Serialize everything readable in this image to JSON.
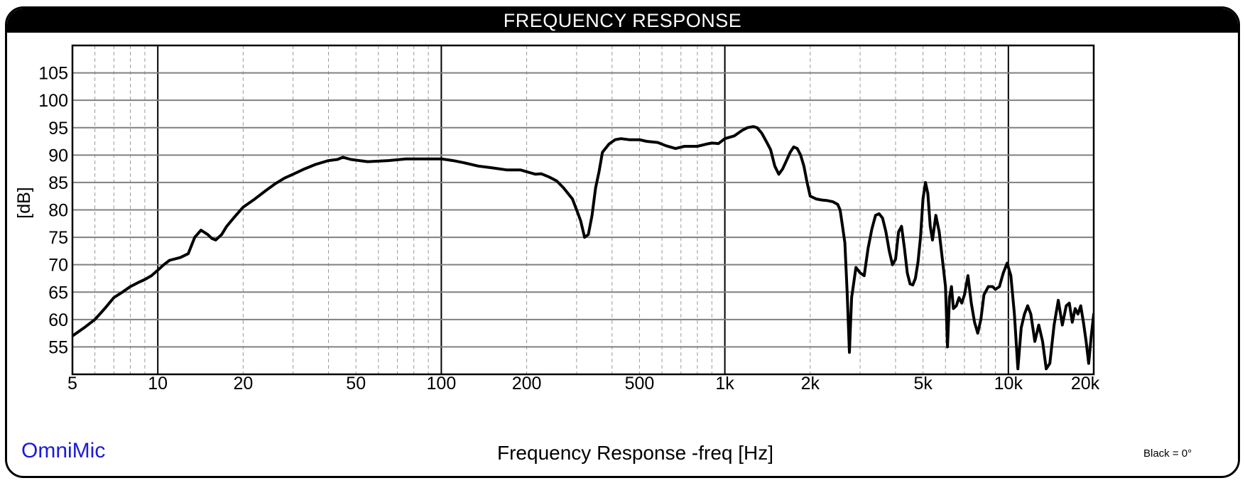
{
  "chart_data": {
    "type": "line",
    "title": "FREQUENCY RESPONSE",
    "xlabel": "Frequency Response -freq [Hz]",
    "ylabel": "[dB]",
    "xscale": "log",
    "xlim": [
      5,
      20000
    ],
    "ylim": [
      50,
      110
    ],
    "grid": true,
    "x_ticks": [
      {
        "value": 5,
        "label": "5"
      },
      {
        "value": 10,
        "label": "10"
      },
      {
        "value": 20,
        "label": "20"
      },
      {
        "value": 50,
        "label": "50"
      },
      {
        "value": 100,
        "label": "100"
      },
      {
        "value": 200,
        "label": "200"
      },
      {
        "value": 500,
        "label": "500"
      },
      {
        "value": 1000,
        "label": "1k"
      },
      {
        "value": 2000,
        "label": "2k"
      },
      {
        "value": 5000,
        "label": "5k"
      },
      {
        "value": 10000,
        "label": "10k"
      },
      {
        "value": 20000,
        "label": "20k"
      }
    ],
    "y_ticks": [
      55,
      60,
      65,
      70,
      75,
      80,
      85,
      90,
      95,
      100,
      105
    ],
    "series": [
      {
        "name": "",
        "color": "#000000",
        "points": [
          [
            5,
            57
          ],
          [
            5.5,
            58.5
          ],
          [
            6,
            60
          ],
          [
            6.5,
            62
          ],
          [
            7,
            64
          ],
          [
            7.5,
            65
          ],
          [
            8,
            66
          ],
          [
            8.5,
            66.7
          ],
          [
            9,
            67.3
          ],
          [
            9.5,
            68
          ],
          [
            10,
            69
          ],
          [
            10.5,
            70
          ],
          [
            11,
            70.8
          ],
          [
            12,
            71.3
          ],
          [
            12.8,
            72
          ],
          [
            13.5,
            75
          ],
          [
            14.2,
            76.3
          ],
          [
            15,
            75.5
          ],
          [
            15.5,
            74.8
          ],
          [
            16,
            74.5
          ],
          [
            16.8,
            75.5
          ],
          [
            17.5,
            77
          ],
          [
            18.5,
            78.5
          ],
          [
            20,
            80.5
          ],
          [
            22,
            82
          ],
          [
            24,
            83.5
          ],
          [
            26,
            84.8
          ],
          [
            28,
            85.8
          ],
          [
            30,
            86.5
          ],
          [
            33,
            87.5
          ],
          [
            36,
            88.3
          ],
          [
            40,
            89
          ],
          [
            43,
            89.2
          ],
          [
            45,
            89.6
          ],
          [
            48,
            89.2
          ],
          [
            55,
            88.8
          ],
          [
            65,
            89
          ],
          [
            75,
            89.3
          ],
          [
            85,
            89.3
          ],
          [
            95,
            89.3
          ],
          [
            100,
            89.3
          ],
          [
            110,
            89
          ],
          [
            120,
            88.6
          ],
          [
            135,
            88
          ],
          [
            150,
            87.7
          ],
          [
            170,
            87.3
          ],
          [
            190,
            87.3
          ],
          [
            205,
            86.8
          ],
          [
            215,
            86.5
          ],
          [
            225,
            86.6
          ],
          [
            240,
            86
          ],
          [
            255,
            85.3
          ],
          [
            270,
            84
          ],
          [
            290,
            82
          ],
          [
            300,
            80
          ],
          [
            310,
            78
          ],
          [
            320,
            75
          ],
          [
            330,
            75.5
          ],
          [
            340,
            79
          ],
          [
            350,
            84
          ],
          [
            360,
            87
          ],
          [
            370,
            90.5
          ],
          [
            390,
            92
          ],
          [
            410,
            92.8
          ],
          [
            430,
            93
          ],
          [
            460,
            92.8
          ],
          [
            500,
            92.8
          ],
          [
            530,
            92.5
          ],
          [
            580,
            92.3
          ],
          [
            620,
            91.7
          ],
          [
            670,
            91.2
          ],
          [
            720,
            91.6
          ],
          [
            800,
            91.6
          ],
          [
            860,
            92
          ],
          [
            900,
            92.2
          ],
          [
            950,
            92.1
          ],
          [
            1000,
            93
          ],
          [
            1080,
            93.5
          ],
          [
            1150,
            94.5
          ],
          [
            1200,
            95
          ],
          [
            1260,
            95.2
          ],
          [
            1300,
            95
          ],
          [
            1350,
            94
          ],
          [
            1400,
            92.5
          ],
          [
            1450,
            91
          ],
          [
            1500,
            88
          ],
          [
            1550,
            86.5
          ],
          [
            1600,
            87.5
          ],
          [
            1650,
            89
          ],
          [
            1700,
            90.5
          ],
          [
            1750,
            91.5
          ],
          [
            1800,
            91.2
          ],
          [
            1850,
            90
          ],
          [
            1900,
            88
          ],
          [
            1950,
            85
          ],
          [
            2000,
            82.5
          ],
          [
            2100,
            82
          ],
          [
            2200,
            81.8
          ],
          [
            2300,
            81.7
          ],
          [
            2400,
            81.5
          ],
          [
            2500,
            81
          ],
          [
            2550,
            80
          ],
          [
            2600,
            77
          ],
          [
            2650,
            74
          ],
          [
            2700,
            65
          ],
          [
            2750,
            54
          ],
          [
            2800,
            64
          ],
          [
            2900,
            69.5
          ],
          [
            3000,
            68.5
          ],
          [
            3100,
            68
          ],
          [
            3200,
            73
          ],
          [
            3300,
            76.5
          ],
          [
            3400,
            79
          ],
          [
            3500,
            79.3
          ],
          [
            3600,
            78.5
          ],
          [
            3700,
            76
          ],
          [
            3800,
            72.5
          ],
          [
            3900,
            70
          ],
          [
            4000,
            71
          ],
          [
            4100,
            76
          ],
          [
            4200,
            77
          ],
          [
            4300,
            73
          ],
          [
            4400,
            68.5
          ],
          [
            4500,
            66.5
          ],
          [
            4600,
            66.3
          ],
          [
            4700,
            67.5
          ],
          [
            4800,
            70.5
          ],
          [
            4900,
            75
          ],
          [
            5000,
            82
          ],
          [
            5100,
            85
          ],
          [
            5200,
            83
          ],
          [
            5300,
            77
          ],
          [
            5400,
            74.5
          ],
          [
            5550,
            79
          ],
          [
            5700,
            76
          ],
          [
            5850,
            71
          ],
          [
            6000,
            66
          ],
          [
            6100,
            55
          ],
          [
            6200,
            64
          ],
          [
            6300,
            66
          ],
          [
            6400,
            62
          ],
          [
            6550,
            62.5
          ],
          [
            6700,
            64
          ],
          [
            6850,
            63
          ],
          [
            7000,
            64.5
          ],
          [
            7200,
            68
          ],
          [
            7400,
            63
          ],
          [
            7600,
            59.5
          ],
          [
            7800,
            57.5
          ],
          [
            8000,
            60
          ],
          [
            8200,
            64.5
          ],
          [
            8500,
            66
          ],
          [
            8800,
            66
          ],
          [
            9000,
            65.5
          ],
          [
            9300,
            66
          ],
          [
            9600,
            68.5
          ],
          [
            9900,
            70.3
          ],
          [
            10200,
            68
          ],
          [
            10500,
            61
          ],
          [
            10800,
            51
          ],
          [
            11100,
            58.5
          ],
          [
            11400,
            61
          ],
          [
            11700,
            62.5
          ],
          [
            12000,
            61
          ],
          [
            12400,
            56
          ],
          [
            12800,
            59
          ],
          [
            13200,
            56
          ],
          [
            13600,
            51
          ],
          [
            14000,
            52
          ],
          [
            14500,
            59
          ],
          [
            15000,
            63.5
          ],
          [
            15500,
            59
          ],
          [
            16000,
            62.5
          ],
          [
            16400,
            63
          ],
          [
            16800,
            59.5
          ],
          [
            17200,
            62
          ],
          [
            17600,
            61
          ],
          [
            18000,
            62.5
          ],
          [
            18400,
            59.5
          ],
          [
            18800,
            56
          ],
          [
            19200,
            52
          ],
          [
            19600,
            57
          ],
          [
            20000,
            61
          ]
        ]
      }
    ]
  },
  "brand": "OmniMic",
  "note": "Black = 0°"
}
